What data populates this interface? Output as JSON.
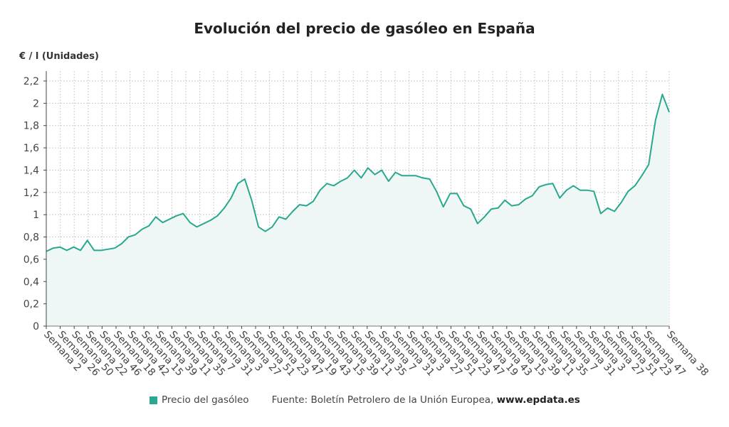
{
  "chart_data": {
    "type": "area",
    "title": "Evolución del precio de gasóleo en España",
    "ylabel": "€ / l (Unidades)",
    "xlabel": "",
    "ylim": [
      0,
      2.2
    ],
    "yticks": [
      0,
      0.2,
      0.4,
      0.6,
      0.8,
      1,
      1.2,
      1.4,
      1.6,
      1.8,
      2,
      2.2
    ],
    "ytick_labels": [
      "0",
      "0,2",
      "0,4",
      "0,6",
      "0,8",
      "1",
      "1,2",
      "1,4",
      "1,6",
      "1,8",
      "2",
      "2,2"
    ],
    "grid": true,
    "legend_placement": "bottom",
    "x_labels": [
      "Semana 2",
      "Semana 26",
      "Semana 50",
      "Semana 22",
      "Semana 46",
      "Semana 18",
      "Semana 42",
      "Semana 15",
      "Semana 39",
      "Semana 11",
      "Semana 35",
      "Semana 7",
      "Semana 31",
      "Semana 3",
      "Semana 27",
      "Semana 51",
      "Semana 23",
      "Semana 47",
      "Semana 19",
      "Semana 43",
      "Semana 15",
      "Semana 39",
      "Semana 11",
      "Semana 35",
      "Semana 7",
      "Semana 31",
      "Semana 3",
      "Semana 27",
      "Semana 51",
      "Semana 23",
      "Semana 47",
      "Semana 19",
      "Semana 43",
      "Semana 15",
      "Semana 39",
      "Semana 11",
      "Semana 35",
      "Semana 7",
      "Semana 31",
      "Semana 3",
      "Semana 27",
      "Semana 51",
      "Semana 23",
      "Semana 47",
      "Semana 38"
    ],
    "series": [
      {
        "name": "Precio del gasóleo",
        "color": "#2aa88f",
        "values": [
          0.67,
          0.7,
          0.71,
          0.68,
          0.71,
          0.68,
          0.77,
          0.68,
          0.68,
          0.69,
          0.7,
          0.74,
          0.8,
          0.82,
          0.87,
          0.9,
          0.98,
          0.93,
          0.96,
          0.99,
          1.01,
          0.93,
          0.89,
          0.92,
          0.95,
          0.99,
          1.06,
          1.15,
          1.28,
          1.32,
          1.13,
          0.89,
          0.85,
          0.89,
          0.98,
          0.96,
          1.03,
          1.09,
          1.08,
          1.12,
          1.22,
          1.28,
          1.26,
          1.3,
          1.33,
          1.4,
          1.33,
          1.42,
          1.36,
          1.4,
          1.3,
          1.38,
          1.35,
          1.35,
          1.35,
          1.33,
          1.32,
          1.21,
          1.07,
          1.19,
          1.19,
          1.08,
          1.05,
          0.92,
          0.98,
          1.05,
          1.06,
          1.13,
          1.08,
          1.09,
          1.14,
          1.17,
          1.25,
          1.27,
          1.28,
          1.15,
          1.22,
          1.26,
          1.22,
          1.22,
          1.21,
          1.01,
          1.06,
          1.03,
          1.11,
          1.21,
          1.26,
          1.35,
          1.45,
          1.85,
          2.08,
          1.92
        ]
      }
    ],
    "source": "Fuente: Boletín Petrolero de la Unión Europea, ",
    "source_link": "www.epdata.es",
    "fill_color": "#eef7f6",
    "grid_color": "#cccccc"
  }
}
